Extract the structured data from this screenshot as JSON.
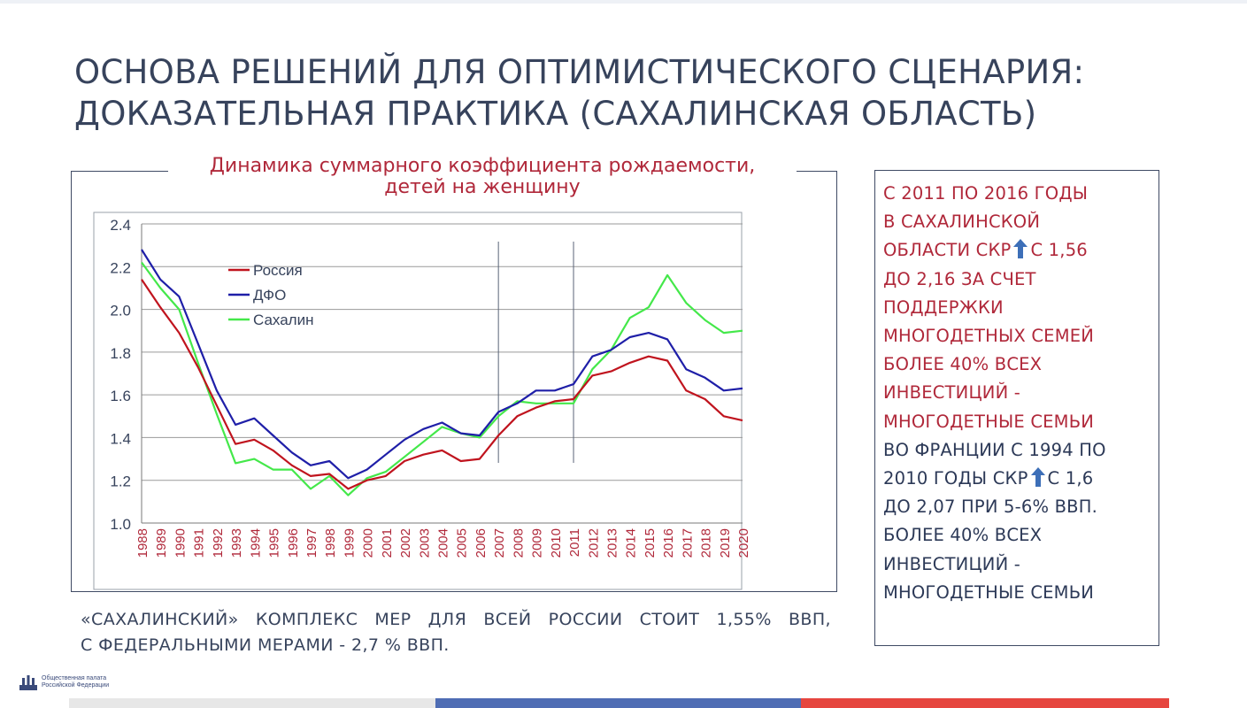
{
  "slide": {
    "title_line1": "ОСНОВА РЕШЕНИЙ ДЛЯ ОПТИМИСТИЧЕСКОГО СЦЕНАРИЯ:",
    "title_line2": "ДОКАЗАТЕЛЬНАЯ ПРАКТИКА (САХАЛИНСКАЯ ОБЛАСТЬ)"
  },
  "bottom_note": {
    "words": [
      "«САХАЛИНСКИЙ»",
      "КОМПЛЕКС",
      "МЕР",
      "ДЛЯ",
      "ВСЕЙ",
      "РОССИИ",
      "СТОИТ",
      "1,55%",
      "ВВП,"
    ],
    "line2": "С ФЕДЕРАЛЬНЫМИ МЕРАМИ - 2,7 % ВВП."
  },
  "side_box": {
    "red_lines": [
      "С 2011 ПО 2016 ГОДЫ",
      "В САХАЛИНСКОЙ",
      "ОБЛАСТИ СКР",
      "С 1,56",
      "ДО 2,16 ЗА СЧЕТ",
      "ПОДДЕРЖКИ",
      "МНОГОДЕТНЫХ СЕМЕЙ",
      "БОЛЕЕ 40% ВСЕХ",
      "ИНВЕСТИЦИЙ -",
      "МНОГОДЕТНЫЕ СЕМЬИ"
    ],
    "dark_lines": [
      "ВО ФРАНЦИИ С 1994 ПО",
      "2010 ГОДЫ СКР",
      "С  1,6",
      "ДО 2,07 ПРИ 5-6% ВВП.",
      "БОЛЕЕ 40% ВСЕХ",
      "ИНВЕСТИЦИЙ -",
      "МНОГОДЕТНЫЕ СЕМЬИ"
    ],
    "arrow_icon": "up-arrow-icon",
    "arrow_color": "#3d6fb8"
  },
  "logo": {
    "line1": "Общественная палата",
    "line2": "Российской Федерации"
  },
  "colors": {
    "russia": "#c0141e",
    "dfo": "#1f1fa8",
    "sakhalin": "#44e84a",
    "title_red": "#b0283a",
    "text_dark": "#37435c"
  },
  "chart_data": {
    "type": "line",
    "title": "Динамика суммарного коэффициента рождаемости,",
    "subtitle": "детей на женщину",
    "x": [
      1988,
      1989,
      1990,
      1991,
      1992,
      1993,
      1994,
      1995,
      1996,
      1997,
      1998,
      1999,
      2000,
      2001,
      2002,
      2003,
      2004,
      2005,
      2006,
      2007,
      2008,
      2009,
      2010,
      2011,
      2012,
      2013,
      2014,
      2015,
      2016,
      2017,
      2018,
      2019,
      2020
    ],
    "ylim": [
      1.0,
      2.4
    ],
    "yticks": [
      "1.0",
      "1.2",
      "1.4",
      "1.6",
      "1.8",
      "2.0",
      "2.2",
      "2.4"
    ],
    "grid": true,
    "legend_position": "top-left",
    "vertical_markers": [
      2007,
      2011
    ],
    "series": [
      {
        "name": "Россия",
        "color": "#c0141e",
        "values": [
          2.14,
          2.01,
          1.89,
          1.73,
          1.55,
          1.37,
          1.39,
          1.34,
          1.27,
          1.22,
          1.23,
          1.16,
          1.2,
          1.22,
          1.29,
          1.32,
          1.34,
          1.29,
          1.3,
          1.41,
          1.5,
          1.54,
          1.57,
          1.58,
          1.69,
          1.71,
          1.75,
          1.78,
          1.76,
          1.62,
          1.58,
          1.5,
          1.48
        ]
      },
      {
        "name": "ДФО",
        "color": "#1f1fa8",
        "values": [
          2.28,
          2.14,
          2.06,
          1.84,
          1.62,
          1.46,
          1.49,
          1.41,
          1.33,
          1.27,
          1.29,
          1.21,
          1.25,
          1.32,
          1.39,
          1.44,
          1.47,
          1.42,
          1.41,
          1.52,
          1.56,
          1.62,
          1.62,
          1.65,
          1.78,
          1.81,
          1.87,
          1.89,
          1.86,
          1.72,
          1.68,
          1.62,
          1.63
        ]
      },
      {
        "name": "Сахалин",
        "color": "#44e84a",
        "values": [
          2.22,
          2.1,
          2.0,
          1.75,
          1.51,
          1.28,
          1.3,
          1.25,
          1.25,
          1.16,
          1.22,
          1.13,
          1.21,
          1.24,
          1.31,
          1.38,
          1.45,
          1.42,
          1.4,
          1.5,
          1.57,
          1.56,
          1.56,
          1.56,
          1.72,
          1.81,
          1.96,
          2.01,
          2.16,
          2.03,
          1.95,
          1.89,
          1.9
        ]
      }
    ]
  }
}
